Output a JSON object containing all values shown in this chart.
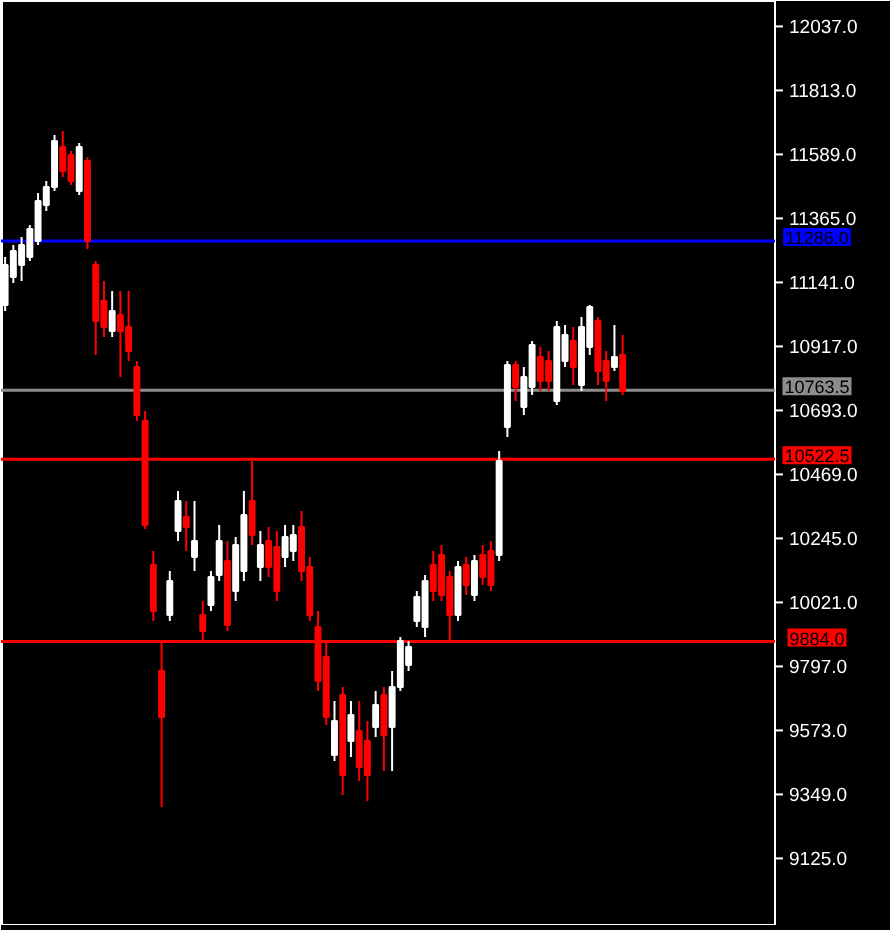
{
  "chart_data": {
    "type": "candlestick",
    "categories": [
      null,
      null,
      null,
      null,
      null,
      null,
      null,
      null,
      null,
      null,
      null,
      null,
      null,
      null,
      null,
      null,
      null,
      null,
      null,
      null,
      null,
      null,
      null,
      null,
      null,
      null,
      null,
      null,
      null,
      null,
      null,
      null,
      null,
      null,
      null,
      null,
      null,
      null,
      null,
      null,
      null,
      null,
      null,
      null,
      null,
      null,
      null,
      null,
      null,
      null,
      null,
      null,
      null,
      null,
      null,
      null,
      null,
      null,
      null,
      null,
      null,
      null,
      null,
      null,
      null,
      null,
      null,
      null,
      null,
      null,
      null,
      null,
      null,
      null,
      null,
      null,
      null,
      null,
      null,
      null,
      null,
      null,
      null,
      null,
      null,
      null,
      null,
      null,
      null,
      null,
      null,
      null,
      null,
      null
    ],
    "ohlc": [
      [
        11062,
        11230,
        11041,
        11202
      ],
      [
        11160,
        11272,
        11139,
        11251
      ],
      [
        11202,
        11300,
        11146,
        11272
      ],
      [
        11230,
        11342,
        11216,
        11328
      ],
      [
        11286,
        11454,
        11272,
        11426
      ],
      [
        11412,
        11496,
        11391,
        11475
      ],
      [
        11475,
        11657,
        11461,
        11636
      ],
      [
        11615,
        11671,
        11510,
        11531
      ],
      [
        11587,
        11601,
        11482,
        11496
      ],
      [
        11461,
        11629,
        11447,
        11615
      ],
      [
        11566,
        11580,
        11258,
        11286
      ],
      [
        11202,
        11216,
        10887,
        11006
      ],
      [
        11076,
        11146,
        10950,
        10985
      ],
      [
        10971,
        11111,
        10950,
        11041
      ],
      [
        11027,
        11111,
        10810,
        10971
      ],
      [
        10985,
        11111,
        10866,
        10901
      ],
      [
        10845,
        10866,
        10656,
        10677
      ],
      [
        10656,
        10691,
        10278,
        10292
      ],
      [
        10152,
        10201,
        9956,
        9991
      ],
      [
        9781,
        9886,
        9305,
        9620
      ],
      [
        9977,
        10131,
        9956,
        10096
      ],
      [
        10271,
        10411,
        10236,
        10376
      ],
      [
        10320,
        10376,
        10201,
        10285
      ],
      [
        10180,
        10376,
        10131,
        10236
      ],
      [
        9977,
        10026,
        9886,
        9921
      ],
      [
        10012,
        10131,
        9991,
        10110
      ],
      [
        10117,
        10292,
        10096,
        10236
      ],
      [
        10166,
        10236,
        9921,
        9942
      ],
      [
        10061,
        10250,
        10026,
        10222
      ],
      [
        10131,
        10411,
        10096,
        10327
      ],
      [
        10376,
        10516,
        10222,
        10257
      ],
      [
        10145,
        10271,
        10096,
        10222
      ],
      [
        10236,
        10285,
        10110,
        10145
      ],
      [
        10215,
        10271,
        10026,
        10061
      ],
      [
        10180,
        10292,
        10145,
        10250
      ],
      [
        10201,
        10292,
        10166,
        10257
      ],
      [
        10285,
        10341,
        10096,
        10131
      ],
      [
        10145,
        10180,
        9956,
        9977
      ],
      [
        9935,
        9991,
        9711,
        9746
      ],
      [
        9830,
        9886,
        9592,
        9620
      ],
      [
        9487,
        9676,
        9466,
        9606
      ],
      [
        9697,
        9725,
        9347,
        9417
      ],
      [
        9536,
        9676,
        9480,
        9627
      ],
      [
        9571,
        9676,
        9396,
        9445
      ],
      [
        9536,
        9606,
        9326,
        9417
      ],
      [
        9585,
        9711,
        9550,
        9662
      ],
      [
        9697,
        9725,
        9431,
        9557
      ],
      [
        9585,
        9781,
        9431,
        9725
      ],
      [
        9725,
        9900,
        9711,
        9886
      ],
      [
        9802,
        9886,
        9781,
        9865
      ],
      [
        9956,
        10061,
        9935,
        10040
      ],
      [
        9935,
        10117,
        9900,
        10096
      ],
      [
        10152,
        10201,
        10026,
        10061
      ],
      [
        10187,
        10222,
        10026,
        10047
      ],
      [
        10110,
        10131,
        9886,
        9977
      ],
      [
        9977,
        10166,
        9956,
        10145
      ],
      [
        10152,
        10180,
        10047,
        10082
      ],
      [
        10047,
        10187,
        10026,
        10166
      ],
      [
        10187,
        10222,
        10082,
        10110
      ],
      [
        10201,
        10236,
        10061,
        10082
      ],
      [
        10187,
        10551,
        10166,
        10516
      ],
      [
        10635,
        10866,
        10600,
        10852
      ],
      [
        10852,
        10866,
        10726,
        10775
      ],
      [
        10705,
        10845,
        10677,
        10810
      ],
      [
        10775,
        10936,
        10747,
        10922
      ],
      [
        10880,
        10915,
        10761,
        10796
      ],
      [
        10866,
        10901,
        10761,
        10796
      ],
      [
        10726,
        11006,
        10712,
        10985
      ],
      [
        10866,
        10992,
        10845,
        10957
      ],
      [
        10936,
        10985,
        10782,
        10845
      ],
      [
        10782,
        11020,
        10761,
        10985
      ],
      [
        10915,
        11062,
        10887,
        11055
      ],
      [
        11006,
        11020,
        10782,
        10831
      ],
      [
        10866,
        10901,
        10726,
        10796
      ],
      [
        10845,
        10992,
        10831,
        10880
      ],
      [
        10887,
        10957,
        10747,
        10761
      ],
      null,
      null,
      null,
      null,
      null,
      null,
      null,
      null,
      null,
      null,
      null,
      null,
      null,
      null,
      null,
      null,
      null,
      null
    ],
    "ylim": [
      8892,
      12126
    ],
    "yticks": [
      {
        "value": 12037,
        "label": "12037.0"
      },
      {
        "value": 11813,
        "label": "11813.0"
      },
      {
        "value": 11589,
        "label": "11589.0"
      },
      {
        "value": 11365,
        "label": "11365.0"
      },
      {
        "value": 11141,
        "label": "11141.0"
      },
      {
        "value": 10917,
        "label": "10917.0"
      },
      {
        "value": 10693,
        "label": "10693.0"
      },
      {
        "value": 10469,
        "label": "10469.0"
      },
      {
        "value": 10245,
        "label": "10245.0"
      },
      {
        "value": 10021,
        "label": "10021.0"
      },
      {
        "value": 9797,
        "label": "9797.0"
      },
      {
        "value": 9573,
        "label": "9573.0"
      },
      {
        "value": 9349,
        "label": "9349.0"
      },
      {
        "value": 9125,
        "label": "9125.0"
      }
    ],
    "ref_lines": [
      {
        "axis": "y",
        "value": 11286,
        "label": "11286.0",
        "color": "#0000ff"
      },
      {
        "axis": "y",
        "value": 10763.5,
        "label": "10763.5",
        "color": "#8c8c8c"
      },
      {
        "axis": "y",
        "value": 10522.5,
        "label": "10522.5",
        "color": "#ff0000"
      },
      {
        "axis": "y",
        "value": 9884,
        "label": "9884.0",
        "color": "#ff0000"
      }
    ],
    "grid": false,
    "tick_labels": "y"
  }
}
